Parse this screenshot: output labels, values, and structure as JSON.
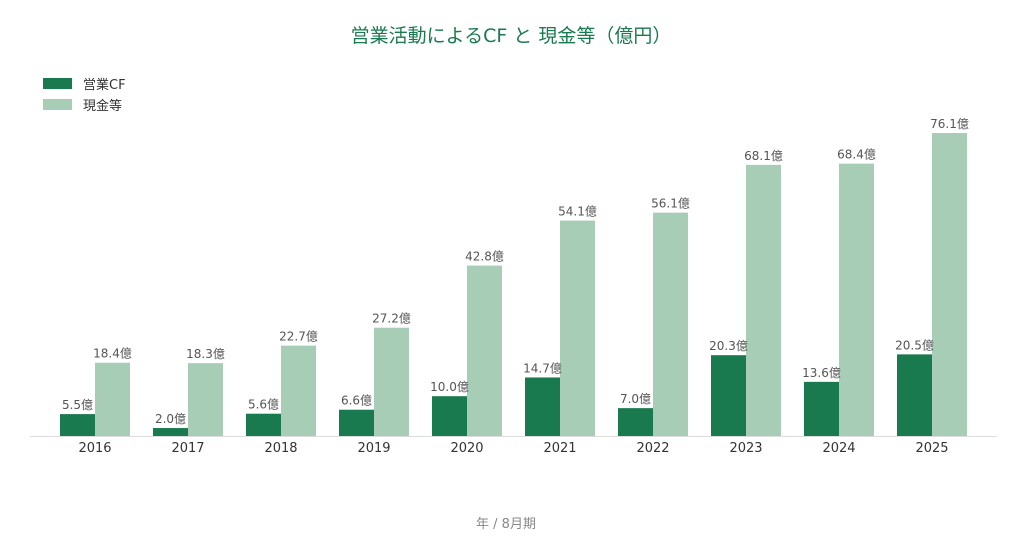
{
  "chart_data": {
    "type": "bar",
    "title": "営業活動によるCF と 現金等（億円）",
    "xlabel": "年 / 8月期",
    "ylabel": "",
    "categories": [
      "2016",
      "2017",
      "2018",
      "2019",
      "2020",
      "2021",
      "2022",
      "2023",
      "2024",
      "2025"
    ],
    "series": [
      {
        "name": "営業CF",
        "color": "#1a7a4f",
        "values": [
          5.5,
          2.0,
          5.6,
          6.6,
          10.0,
          14.7,
          7.0,
          20.3,
          13.6,
          20.5
        ],
        "labels": [
          "5.5億",
          "2.0億",
          "5.6億",
          "6.6億",
          "10.0億",
          "14.7億",
          "7.0億",
          "20.3億",
          "13.6億",
          "20.5億"
        ]
      },
      {
        "name": "現金等",
        "color": "#a8cdb7",
        "values": [
          18.4,
          18.3,
          22.7,
          27.2,
          42.8,
          54.1,
          56.1,
          68.1,
          68.4,
          76.1
        ],
        "labels": [
          "18.4億",
          "18.3億",
          "22.7億",
          "27.2億",
          "42.8億",
          "54.1億",
          "56.1億",
          "68.1億",
          "68.4億",
          "76.1億"
        ]
      }
    ],
    "ylim": [
      0,
      76.1
    ],
    "grid": false,
    "legend": "top-left",
    "colors": {
      "title": "#1a7a4f",
      "axis": "#dddddd",
      "tick_label": "#333333",
      "value_label": "#555555",
      "xlabel": "#888888"
    }
  }
}
